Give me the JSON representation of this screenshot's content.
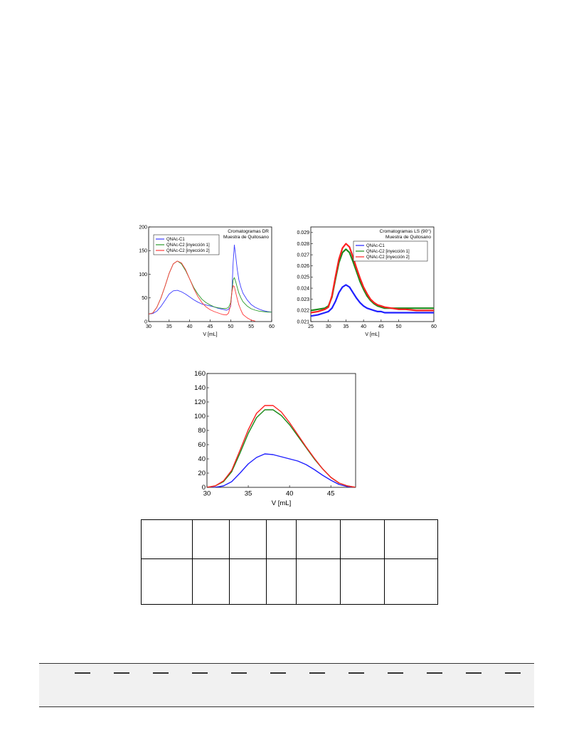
{
  "chart_data": [
    {
      "type": "line",
      "title": "Cromatogramas DR\nMuestra de Quitosano",
      "xlabel": "V [mL]",
      "ylabel": "",
      "xlim": [
        30,
        60
      ],
      "ylim": [
        0,
        200
      ],
      "xticks": [
        "30",
        "35",
        "40",
        "45",
        "50",
        "55",
        "60"
      ],
      "yticks": [
        "0",
        "50",
        "100",
        "150",
        "200"
      ],
      "legend_position": "top-left",
      "grid": false,
      "series": [
        {
          "name": "QNAc-C1",
          "color": "#3a3aff",
          "x": [
            30,
            31,
            32,
            33,
            34,
            35,
            36,
            37,
            38,
            39,
            40,
            41,
            42,
            43,
            44,
            45,
            46,
            47,
            48,
            49,
            49.5,
            50,
            50.3,
            50.6,
            50.9,
            51.2,
            51.6,
            52,
            52.5,
            53,
            54,
            55,
            56,
            57,
            58,
            59,
            60
          ],
          "y": [
            16,
            17,
            22,
            32,
            45,
            58,
            65,
            66,
            63,
            58,
            52,
            46,
            41,
            37,
            35,
            33,
            31,
            28,
            26,
            24,
            26,
            32,
            65,
            125,
            162,
            140,
            110,
            88,
            72,
            60,
            46,
            36,
            30,
            26,
            23,
            21,
            20
          ]
        },
        {
          "name": "QNAc-C2 [inyección 1]",
          "color": "#2a9a2a",
          "x": [
            30,
            31,
            32,
            33,
            34,
            35,
            36,
            37,
            38,
            39,
            40,
            41,
            42,
            43,
            44,
            45,
            46,
            47,
            48,
            49,
            49.5,
            50,
            50.3,
            50.6,
            50.9,
            51.2,
            51.6,
            52,
            52.5,
            53,
            54,
            55,
            56,
            57,
            58,
            59,
            60
          ],
          "y": [
            16,
            18,
            30,
            50,
            75,
            102,
            122,
            128,
            122,
            108,
            90,
            72,
            58,
            47,
            40,
            35,
            31,
            29,
            28,
            28,
            30,
            40,
            65,
            88,
            93,
            85,
            72,
            60,
            50,
            42,
            33,
            27,
            24,
            22,
            21,
            20,
            20
          ]
        },
        {
          "name": "QNAc-C2 [inyección 2]",
          "color": "#ff3a3a",
          "x": [
            30,
            31,
            32,
            33,
            34,
            35,
            36,
            37,
            38,
            39,
            40,
            41,
            42,
            43,
            44,
            45,
            46,
            47,
            48,
            49,
            49.5,
            50,
            50.3,
            50.6,
            50.9,
            51.2,
            51.6,
            52,
            52.5,
            53,
            54,
            55,
            56
          ],
          "y": [
            16,
            18,
            30,
            50,
            75,
            102,
            122,
            128,
            124,
            110,
            90,
            70,
            53,
            40,
            31,
            25,
            21,
            18,
            15,
            14,
            18,
            35,
            62,
            76,
            74,
            62,
            48,
            35,
            24,
            15,
            8,
            3,
            1
          ]
        }
      ]
    },
    {
      "type": "line",
      "title": "Cromatogramas LS (90°)\nMuestra de Quitosano",
      "xlabel": "V [mL]",
      "ylabel": "",
      "xlim": [
        25,
        60
      ],
      "ylim": [
        0.021,
        0.0295
      ],
      "xticks": [
        "25",
        "30",
        "35",
        "40",
        "45",
        "50",
        "60"
      ],
      "yticks": [
        "0.021",
        "0.022",
        "0.023",
        "0.024",
        "0.025",
        "0.026",
        "0.027",
        "0.028",
        "0.029"
      ],
      "legend_position": "top-left",
      "grid": false,
      "series": [
        {
          "name": "QNAc-C1",
          "color": "#2020ff",
          "x": [
            25,
            27,
            29,
            30,
            31,
            32,
            33,
            34,
            35,
            36,
            37,
            38,
            39,
            40,
            41,
            42,
            43,
            44,
            45,
            46,
            48,
            50,
            52,
            55,
            58,
            60
          ],
          "y": [
            0.0215,
            0.0216,
            0.0218,
            0.0219,
            0.0222,
            0.0228,
            0.0236,
            0.0241,
            0.0243,
            0.0241,
            0.0236,
            0.0231,
            0.0227,
            0.0224,
            0.0222,
            0.0221,
            0.022,
            0.0219,
            0.0219,
            0.0218,
            0.0218,
            0.0218,
            0.0218,
            0.0218,
            0.0218,
            0.0218
          ]
        },
        {
          "name": "QNAc-C2 [inyección 1]",
          "color": "#1a8a1a",
          "x": [
            25,
            27,
            29,
            30,
            31,
            32,
            33,
            34,
            35,
            36,
            37,
            38,
            39,
            40,
            41,
            42,
            43,
            44,
            45,
            46,
            48,
            50,
            52,
            55,
            58,
            60
          ],
          "y": [
            0.022,
            0.0221,
            0.0222,
            0.0224,
            0.0232,
            0.0248,
            0.0263,
            0.0272,
            0.0275,
            0.0272,
            0.0264,
            0.0255,
            0.0246,
            0.0239,
            0.0233,
            0.0229,
            0.0226,
            0.0224,
            0.0223,
            0.0222,
            0.0222,
            0.0222,
            0.0222,
            0.0222,
            0.0222,
            0.0222
          ]
        },
        {
          "name": "QNAc-C2 [inyección 2]",
          "color": "#ff2020",
          "x": [
            25,
            27,
            29,
            30,
            31,
            32,
            33,
            34,
            35,
            36,
            37,
            38,
            39,
            40,
            41,
            42,
            43,
            44,
            45,
            46,
            48,
            50,
            52,
            55,
            58,
            60
          ],
          "y": [
            0.0218,
            0.0219,
            0.0221,
            0.0223,
            0.0233,
            0.025,
            0.0266,
            0.0276,
            0.028,
            0.0277,
            0.0268,
            0.0258,
            0.0249,
            0.0241,
            0.0235,
            0.023,
            0.0227,
            0.0225,
            0.0224,
            0.0223,
            0.0222,
            0.0221,
            0.0221,
            0.022,
            0.022,
            0.022
          ]
        }
      ]
    },
    {
      "type": "line",
      "title": "",
      "xlabel": "V [mL]",
      "ylabel": "",
      "xlim": [
        30,
        48
      ],
      "ylim": [
        0,
        160
      ],
      "xticks": [
        "30",
        "35",
        "40",
        "45"
      ],
      "yticks": [
        "0",
        "20",
        "40",
        "60",
        "80",
        "100",
        "120",
        "140",
        "160"
      ],
      "grid": false,
      "series": [
        {
          "color": "#2020ff",
          "x": [
            30,
            31,
            32,
            33,
            34,
            35,
            36,
            37,
            38,
            39,
            40,
            41,
            42,
            43,
            44,
            45,
            46,
            47,
            48
          ],
          "y": [
            0,
            0,
            2,
            8,
            20,
            33,
            42,
            47,
            46,
            43,
            40,
            37,
            32,
            25,
            17,
            10,
            4,
            1,
            0
          ]
        },
        {
          "color": "#1a8a1a",
          "x": [
            30,
            31,
            32,
            33,
            34,
            35,
            36,
            37,
            38,
            39,
            40,
            41,
            42,
            43,
            44,
            45,
            46,
            47,
            48
          ],
          "y": [
            0,
            2,
            8,
            22,
            48,
            76,
            98,
            109,
            109,
            101,
            88,
            72,
            56,
            40,
            26,
            14,
            6,
            2,
            0
          ]
        },
        {
          "color": "#ff2020",
          "x": [
            30,
            31,
            32,
            33,
            34,
            35,
            36,
            37,
            38,
            39,
            40,
            41,
            42,
            43,
            44,
            45,
            46,
            47,
            48
          ],
          "y": [
            0,
            2,
            9,
            24,
            52,
            81,
            104,
            115,
            115,
            106,
            91,
            74,
            57,
            41,
            26,
            14,
            6,
            2,
            0
          ]
        }
      ]
    }
  ],
  "table": {
    "rows": [
      [
        "",
        "",
        "",
        "",
        "",
        "",
        ""
      ],
      [
        "",
        "",
        "",
        "",
        "",
        "",
        ""
      ]
    ]
  },
  "footer": {
    "tab_count": 12
  }
}
